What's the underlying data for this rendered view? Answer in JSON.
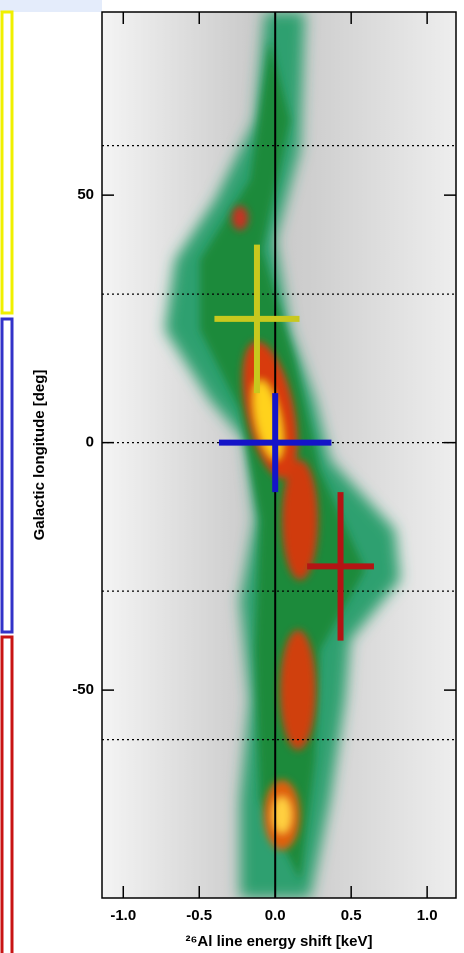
{
  "chart_data": {
    "type": "scatter",
    "xlabel": "²⁶Al line energy shift [keV]",
    "ylabel": "Galactic longitude [deg]",
    "xlim": [
      -1.14,
      1.19
    ],
    "ylim": [
      -92,
      87
    ],
    "xticks": [
      {
        "value": -1.0,
        "label": "-1.0"
      },
      -0.5,
      {
        "value": 0.0,
        "label": "0.0"
      },
      0.5,
      {
        "value": 1.0,
        "label": "1.0"
      }
    ],
    "yticks": [
      50,
      0,
      -50
    ],
    "hlines": [
      60,
      30,
      0,
      -30,
      -60
    ],
    "vline": 0,
    "series": [
      {
        "color": "#c8c81e",
        "x": [
          -0.12
        ],
        "xerr": [
          0.28
        ],
        "values": [
          25
        ],
        "yerr": [
          15
        ]
      },
      {
        "color": "#1414c8",
        "x": [
          0
        ],
        "xerr": [
          0.37
        ],
        "values": [
          0
        ],
        "yerr": [
          10
        ]
      },
      {
        "color": "#b41414",
        "x": [
          0.43
        ],
        "xerr": [
          0.22
        ],
        "values": [
          -25
        ],
        "yerr": [
          15
        ]
      }
    ]
  }
}
